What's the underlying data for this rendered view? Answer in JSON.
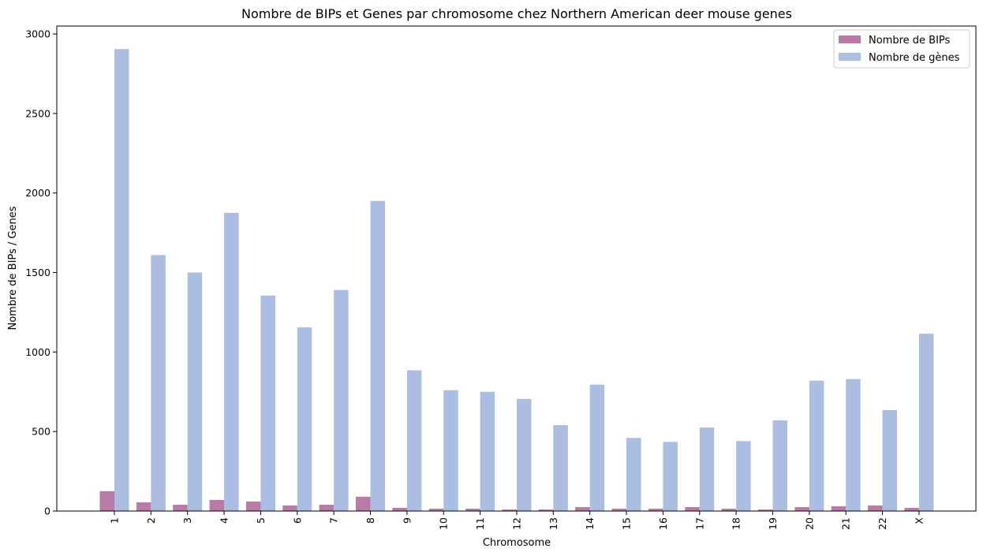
{
  "chart_data": {
    "type": "bar",
    "title": "Nombre de BIPs et Genes par chromosome chez Northern American deer mouse genes",
    "xlabel": "Chromosome",
    "ylabel": "Nombre de BIPs / Genes",
    "ylim": [
      0,
      3050
    ],
    "yticks": [
      0,
      500,
      1000,
      1500,
      2000,
      2500,
      3000
    ],
    "categories": [
      "1",
      "2",
      "3",
      "4",
      "5",
      "6",
      "7",
      "8",
      "9",
      "10",
      "11",
      "12",
      "13",
      "14",
      "15",
      "16",
      "17",
      "18",
      "19",
      "20",
      "21",
      "22",
      "X"
    ],
    "series": [
      {
        "name": "Nombre de BIPs",
        "color": "#b87aa6",
        "values": [
          125,
          55,
          40,
          70,
          60,
          35,
          40,
          90,
          20,
          15,
          15,
          10,
          10,
          25,
          15,
          15,
          25,
          15,
          10,
          25,
          30,
          35,
          20
        ]
      },
      {
        "name": "Nombre de gènes",
        "color": "#abbde0",
        "values": [
          2905,
          1610,
          1500,
          1875,
          1355,
          1155,
          1390,
          1950,
          885,
          760,
          750,
          705,
          540,
          795,
          460,
          435,
          525,
          440,
          570,
          820,
          830,
          635,
          1115
        ]
      }
    ],
    "legend_position": "top-right",
    "grid": false
  }
}
